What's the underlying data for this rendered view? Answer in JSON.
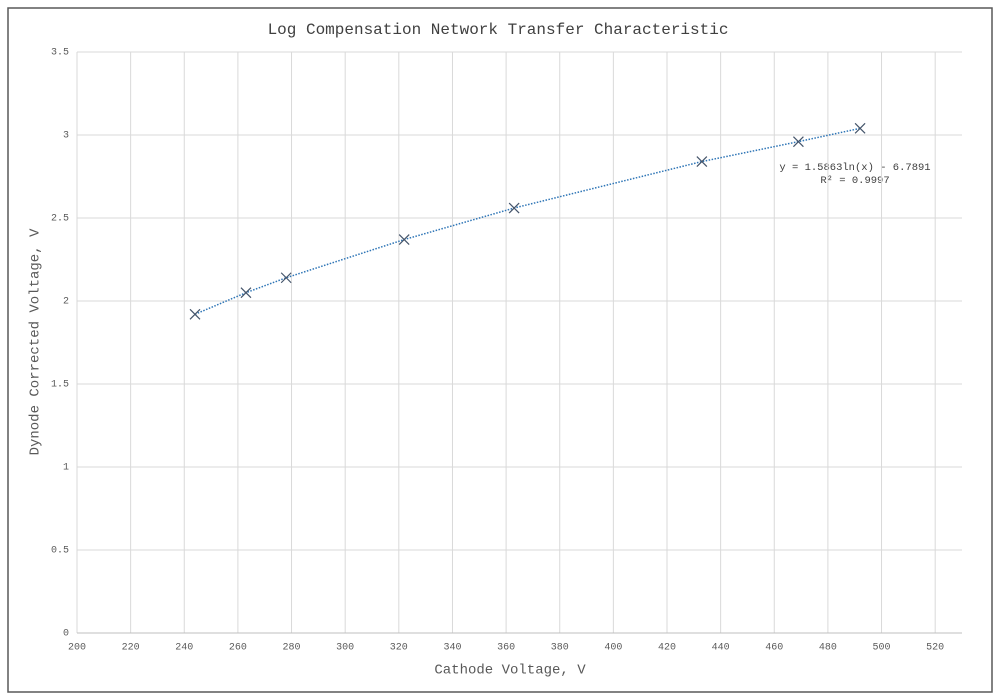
{
  "chart_data": {
    "type": "scatter",
    "title": "Log Compensation Network Transfer Characteristic",
    "x_label": "Cathode Voltage, V",
    "y_label": "Dynode Corrected Voltage, V",
    "annotations": [
      "y = 1.5863ln(x) - 6.7891",
      "R² = 0.9997"
    ],
    "series": [
      {
        "color": "#44546a",
        "trend_color": "#2e75b6",
        "x": [
          244,
          263,
          278,
          322,
          363,
          433,
          469,
          492
        ],
        "values": [
          1.92,
          2.05,
          2.14,
          2.37,
          2.56,
          2.84,
          2.96,
          3.04
        ]
      }
    ],
    "xlim": [
      200,
      530
    ],
    "xticks": [
      200,
      220,
      240,
      260,
      280,
      300,
      320,
      340,
      360,
      380,
      400,
      420,
      440,
      460,
      480,
      500,
      520
    ],
    "ylim": [
      0,
      3.5
    ],
    "yticks": [
      0,
      0.5,
      1,
      1.5,
      2,
      2.5,
      3,
      3.5
    ],
    "grid": true
  }
}
